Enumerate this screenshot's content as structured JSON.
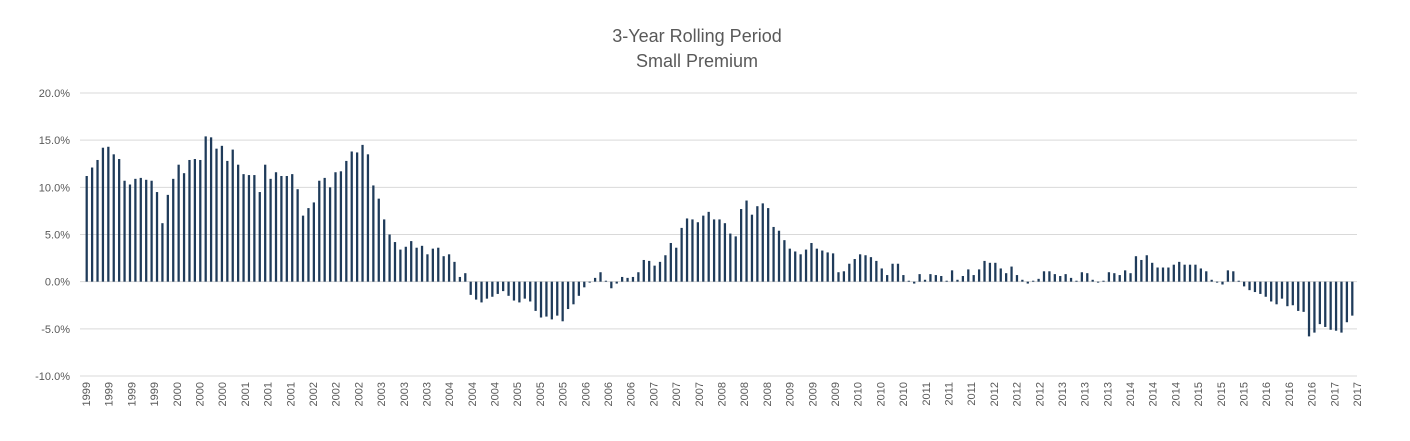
{
  "chart_data": {
    "type": "bar",
    "title": "3-Year Rolling Period",
    "subtitle": "Small Premium",
    "xlabel": "",
    "ylabel": "",
    "ylim": [
      -10.0,
      20.0
    ],
    "yticks": [
      20.0,
      15.0,
      10.0,
      5.0,
      0.0,
      -5.0,
      -10.0
    ],
    "ytick_labels": [
      "20.0%",
      "15.0%",
      "10.0%",
      "5.0%",
      "0.0%",
      "-5.0%",
      "-10.0%"
    ],
    "grid": true,
    "color": "#1f3b5a",
    "x_labels": [
      "1999",
      "1999",
      "1999",
      "1999",
      "2000",
      "2000",
      "2000",
      "2001",
      "2001",
      "2001",
      "2002",
      "2002",
      "2002",
      "2003",
      "2003",
      "2003",
      "2004",
      "2004",
      "2004",
      "2005",
      "2005",
      "2005",
      "2006",
      "2006",
      "2006",
      "2007",
      "2007",
      "2007",
      "2008",
      "2008",
      "2008",
      "2009",
      "2009",
      "2009",
      "2010",
      "2010",
      "2010",
      "2011",
      "2011",
      "2011",
      "2012",
      "2012",
      "2012",
      "2013",
      "2013",
      "2013",
      "2014",
      "2014",
      "2014",
      "2015",
      "2015",
      "2015",
      "2016",
      "2016",
      "2016",
      "2017",
      "2017"
    ],
    "values": [
      11.2,
      12.1,
      12.9,
      14.2,
      14.3,
      13.5,
      13.0,
      10.7,
      10.3,
      10.9,
      11.0,
      10.8,
      10.7,
      9.5,
      6.2,
      9.2,
      10.9,
      12.4,
      11.5,
      12.9,
      13.0,
      12.9,
      15.4,
      15.3,
      14.1,
      14.4,
      12.8,
      14.0,
      12.4,
      11.4,
      11.3,
      11.3,
      9.5,
      12.4,
      10.9,
      11.6,
      11.2,
      11.2,
      11.4,
      9.8,
      7.0,
      7.8,
      8.4,
      10.7,
      11.0,
      10.0,
      11.6,
      11.7,
      12.8,
      13.8,
      13.7,
      14.5,
      13.5,
      10.2,
      8.8,
      6.6,
      5.0,
      4.2,
      3.4,
      3.7,
      4.3,
      3.6,
      3.8,
      2.9,
      3.5,
      3.6,
      2.7,
      2.9,
      2.1,
      0.5,
      0.9,
      -1.4,
      -1.9,
      -2.2,
      -1.8,
      -1.6,
      -1.3,
      -1.0,
      -1.5,
      -2.0,
      -2.2,
      -1.8,
      -2.1,
      -3.1,
      -3.8,
      -3.7,
      -4.0,
      -3.6,
      -4.2,
      -2.9,
      -2.4,
      -1.5,
      -0.6,
      -0.1,
      0.4,
      1.0,
      0.1,
      -0.7,
      -0.2,
      0.5,
      0.4,
      0.5,
      1.0,
      2.3,
      2.2,
      1.7,
      2.1,
      2.8,
      4.1,
      3.6,
      5.7,
      6.7,
      6.6,
      6.3,
      7.0,
      7.4,
      6.6,
      6.6,
      6.2,
      5.1,
      4.8,
      7.7,
      8.6,
      7.1,
      8.0,
      8.3,
      7.8,
      5.8,
      5.4,
      4.4,
      3.5,
      3.2,
      2.9,
      3.4,
      4.1,
      3.5,
      3.3,
      3.1,
      3.0,
      1.0,
      1.1,
      1.9,
      2.4,
      2.9,
      2.8,
      2.6,
      2.2,
      1.4,
      0.7,
      1.9,
      1.9,
      0.7,
      0.1,
      -0.2,
      0.8,
      0.2,
      0.8,
      0.7,
      0.6,
      0.1,
      1.2,
      0.2,
      0.6,
      1.3,
      0.7,
      1.3,
      2.2,
      2.0,
      2.0,
      1.4,
      0.9,
      1.6,
      0.7,
      0.2,
      -0.2,
      0.1,
      0.3,
      1.1,
      1.1,
      0.8,
      0.6,
      0.8,
      0.4,
      0.1,
      1.0,
      0.9,
      0.2,
      -0.1,
      0.1,
      1.0,
      0.9,
      0.7,
      1.2,
      0.9,
      2.7,
      2.3,
      2.8,
      2.0,
      1.5,
      1.5,
      1.5,
      1.8,
      2.1,
      1.8,
      1.8,
      1.8,
      1.4,
      1.1,
      0.2,
      -0.1,
      -0.3,
      1.2,
      1.1,
      0.1,
      -0.5,
      -0.9,
      -1.1,
      -1.3,
      -1.6,
      -2.1,
      -2.4,
      -1.8,
      -2.6,
      -2.5,
      -3.1,
      -3.2,
      -5.8,
      -5.4,
      -4.5,
      -4.8,
      -5.1,
      -5.2,
      -5.4,
      -4.3,
      -3.6
    ]
  }
}
